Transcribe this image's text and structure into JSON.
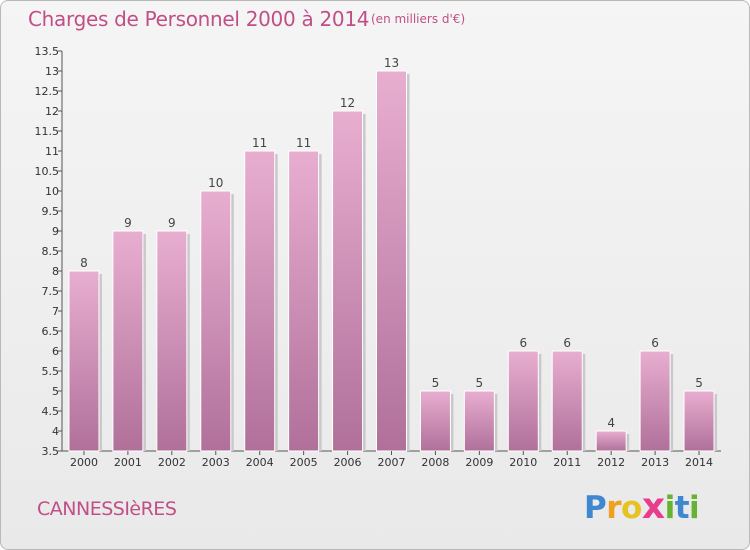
{
  "chart_data": {
    "type": "bar",
    "title": "Charges de Personnel 2000 à 2014",
    "subtitle": "(en milliers d'€)",
    "categories": [
      "2000",
      "2001",
      "2002",
      "2003",
      "2004",
      "2005",
      "2006",
      "2007",
      "2008",
      "2009",
      "2010",
      "2011",
      "2012",
      "2013",
      "2014"
    ],
    "values": [
      8,
      9,
      9,
      10,
      11,
      11,
      12,
      13,
      5,
      5,
      6,
      6,
      4,
      6,
      5
    ],
    "data_labels": [
      "8",
      "9",
      "9",
      "10",
      "11",
      "11",
      "12",
      "13",
      "5",
      "5",
      "6",
      "6",
      "4",
      "6",
      "5"
    ],
    "ylim": [
      3.5,
      13.5
    ],
    "yticks": [
      "3.5",
      "4",
      "4.5",
      "5",
      "5.5",
      "6",
      "6.5",
      "7",
      "7.5",
      "8",
      "8.5",
      "9",
      "9.5",
      "10",
      "10.5",
      "11",
      "11.5",
      "12",
      "12.5",
      "13",
      "13.5"
    ],
    "xlabel": "",
    "ylabel": "",
    "grid": false,
    "bar_color": "#d48db4"
  },
  "footer": {
    "commune": "CANNESSIèRES",
    "logo": [
      "P",
      "r",
      "o",
      "x",
      "i",
      "t",
      "i"
    ]
  }
}
